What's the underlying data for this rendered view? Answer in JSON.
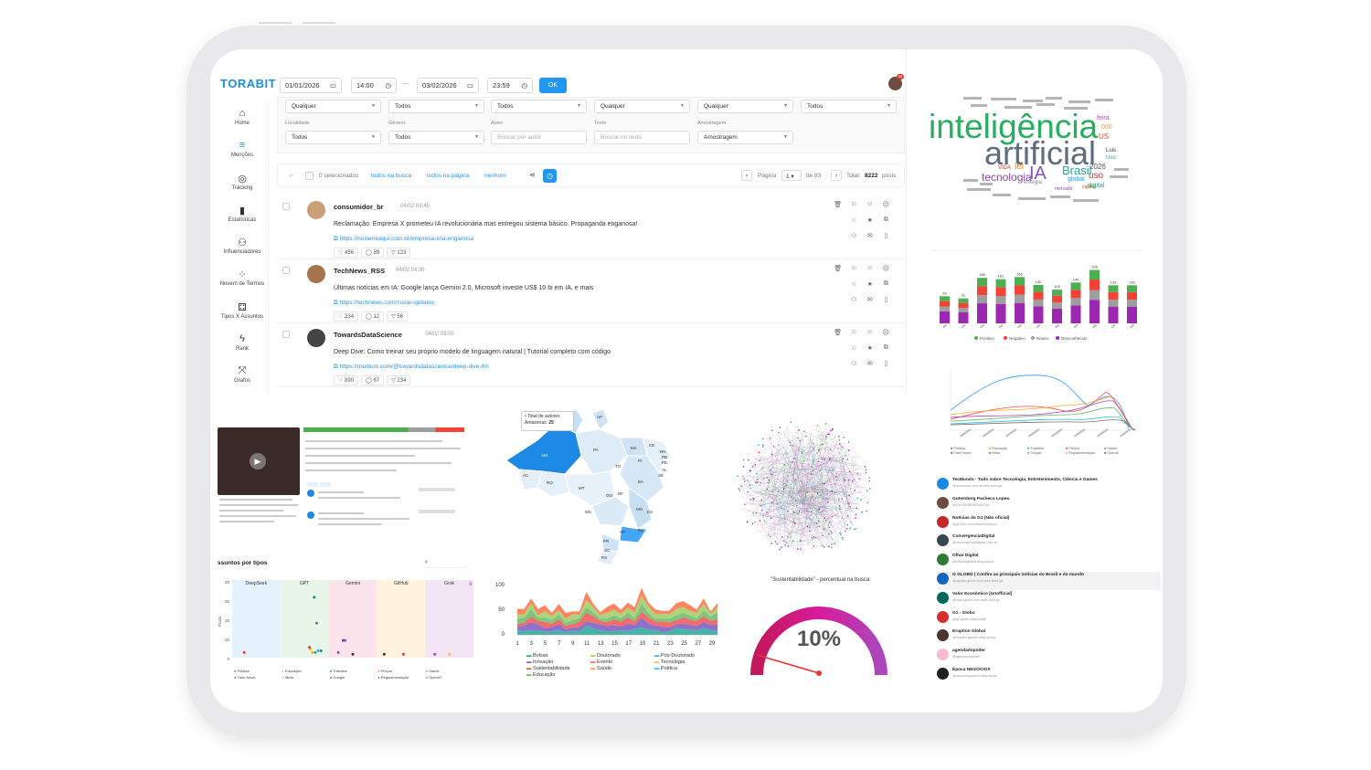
{
  "app": {
    "logo": "TORABIT",
    "date_from": "01/01/2026",
    "time_from": "14:00",
    "range_sep": "—",
    "date_to": "03/02/2026",
    "time_to": "23:59",
    "ok_label": "OK",
    "notif_count": "99"
  },
  "nav": [
    {
      "label": "Home",
      "icon": "⌂"
    },
    {
      "label": "Menções",
      "icon": "≡"
    },
    {
      "label": "Tracking",
      "icon": "◎"
    },
    {
      "label": "Estatísticas",
      "icon": "▮"
    },
    {
      "label": "Influenciadores",
      "icon": "⚇"
    },
    {
      "label": "Nuvem de Termos",
      "icon": "⁘"
    },
    {
      "label": "Tipos X Assuntos",
      "icon": "⚃"
    },
    {
      "label": "Rank",
      "icon": "ϟ"
    },
    {
      "label": "Grafos",
      "icon": "⤧"
    }
  ],
  "filters": {
    "row1": [
      "Qualquer",
      "Todos",
      "Todos",
      "Qualquer",
      "Qualquer",
      "Todos"
    ],
    "labels": [
      "Localidade",
      "Gênero",
      "Autor",
      "Texto",
      "Amostragem"
    ],
    "row2": [
      "Todos",
      "Todos",
      "Buscar por autor",
      "Buscar no texto",
      "Amostragem"
    ]
  },
  "toolbar": {
    "selected": "0 selecionados",
    "all_search": "todos na busca",
    "all_page": "todos na página",
    "none": "nenhum",
    "page_label": "Página",
    "page": "1",
    "of": "de 83",
    "total_label": "Total:",
    "total": "8222",
    "posts": "posts"
  },
  "posts": [
    {
      "author": "consumidor_br",
      "date": "04/02 03:45",
      "text": "Reclamação: Empresa X prometeu IA revolucionária mas entregou sistema básico. Propaganda enganosa!",
      "link": "https://reclameaqui.com.br/empresa-x/ia-enganosa",
      "likes": "456",
      "comments": "89",
      "shares": "123",
      "avatar_color": "#c9a07a"
    },
    {
      "author": "TechNews_RSS",
      "date": "04/02 04:30",
      "text": "Últimas notícias em IA: Google lança Gemini 2.0, Microsoft investe US$ 10 bi em IA, e mais",
      "link": "https://technews.com/rss/ai-updates",
      "likes": "234",
      "comments": "12",
      "shares": "56",
      "avatar_color": "#a5734c"
    },
    {
      "author": "TowardsDataScience",
      "date": "04/02 05:00",
      "text": "Deep Dive: Como treinar seu próprio modelo de linguagem natural | Tutorial completo com código",
      "link": "https://medium.com/@towardsdatascience/deep-dive-llm",
      "likes": "890",
      "comments": "67",
      "shares": "234",
      "avatar_color": "#444444"
    }
  ],
  "wordcloud": {
    "big": [
      "inteligência",
      "artificial",
      "IA",
      "Brasil",
      "tecnologia",
      "lei",
      "2026",
      "uso",
      "global",
      "feira",
      "digital",
      "US",
      "000",
      "Luis",
      "Uso",
      "energia",
      "capital",
      "mercado",
      "VIDA"
    ]
  },
  "bar_chart": {
    "values": [
      "99",
      "91",
      "166",
      "161",
      "169",
      "140",
      "123",
      "149",
      "195",
      "139",
      "139"
    ],
    "legend": [
      "Positivo",
      "Negativo",
      "Neutro",
      "Desconhecido"
    ],
    "colors": [
      "#4caf50",
      "#f44336",
      "#9e9e9e",
      "#9c27b0"
    ]
  },
  "line_legend": [
    "Política",
    "Educação",
    "Trabalho",
    "Preços",
    "Saúde",
    "Fake News",
    "Meta",
    "Google",
    "Regulamentação",
    "OpenAI"
  ],
  "influencers": [
    {
      "name": "TecMundo · Tudo sobre Tecnologia, Entretenimento, Ciência e Games",
      "handle": "@tecmundo.com.br.web.bmd.gc",
      "color": "#1e88e5"
    },
    {
      "name": "Gutemberg Pacheco Lopes.",
      "handle": "@GUTEMBERGMEDIA",
      "color": "#6d4c41"
    },
    {
      "name": "Notícias do G1 (Não oficial)",
      "handle": "@g1.bot.nos.editores.bsky.to",
      "color": "#c62828"
    },
    {
      "name": "ConvergenciaDigital",
      "handle": "@convergenciadigital.com.br",
      "color": "#37474f"
    },
    {
      "name": "Olhar Digital",
      "handle": "@olhardigital.tii.bsky.social",
      "color": "#2e7d32"
    },
    {
      "name": "O GLOBO | Confira as principais notícias do Brasil e do mundo",
      "handle": "@oglobo.globo.com.web.bmd.gc",
      "color": "#1565c0"
    },
    {
      "name": "Valor Econômico [Unofficial]",
      "handle": "@valor.globo.com.web.bmd.gc",
      "color": "#00695c"
    },
    {
      "name": "G1 - Globo",
      "handle": "@g1.globo.bsky.brasil",
      "color": "#d32f2f"
    },
    {
      "name": "Eruption Global",
      "handle": "@eruptionglobal.bsky.social",
      "color": "#4e342e"
    },
    {
      "name": "agendadopoder",
      "handle": "@agendadopoder",
      "color": "#f8bbd0"
    },
    {
      "name": "Época NEGÓCIOS",
      "handle": "@epocanegocios.bsky.social",
      "color": "#212121"
    }
  ],
  "map": {
    "tooltip_title": "Total de autores",
    "tooltip_label": "Amazonas:",
    "tooltip_value": "25",
    "states": [
      "AP",
      "RR",
      "AM",
      "PA",
      "MA",
      "CE",
      "RN",
      "PB",
      "PE",
      "AL",
      "SE",
      "PI",
      "TO",
      "BA",
      "AC",
      "RO",
      "MT",
      "GO",
      "DF",
      "MG",
      "ES",
      "MS",
      "SP",
      "RJ",
      "PR",
      "SC",
      "RS"
    ]
  },
  "area_chart": {
    "yticks": [
      "100",
      "50",
      "0"
    ],
    "xticks": [
      "1",
      "3",
      "5",
      "7",
      "9",
      "11",
      "13",
      "15",
      "17",
      "19",
      "21",
      "23",
      "25",
      "27",
      "29"
    ],
    "legend": [
      "Bolsas",
      "Inovação",
      "Sustentabilidade",
      "Educação",
      "Doutorado",
      "Evento",
      "Saúde",
      "Pós-Doutorado",
      "Tecnologia",
      "Política"
    ],
    "colors": [
      "#26a69a",
      "#7e57c2",
      "#ef5350",
      "#66bb6a",
      "#9ccc65",
      "#ff7043",
      "#ffa726",
      "#42a5f5",
      "#ffb74d",
      "#26c6da"
    ]
  },
  "gauge": {
    "title": "\"Sustentabilidade\" - percentual na busca:",
    "value": "10%",
    "fraction": 0.1
  },
  "scatter": {
    "title": "ssuntos por tipos",
    "input": "#",
    "cats": [
      "DeepSeek",
      "GPT",
      "Gemini",
      "GitHub",
      "Grok"
    ],
    "yticks": [
      "40",
      "30",
      "20",
      "10",
      "0"
    ],
    "ylabel": "Posts",
    "legend": [
      "Política",
      "Educação",
      "Trabalho",
      "Preços",
      "Saúde",
      "Fake News",
      "Meta",
      "Google",
      "Regulamentação",
      "OpenAI"
    ]
  }
}
